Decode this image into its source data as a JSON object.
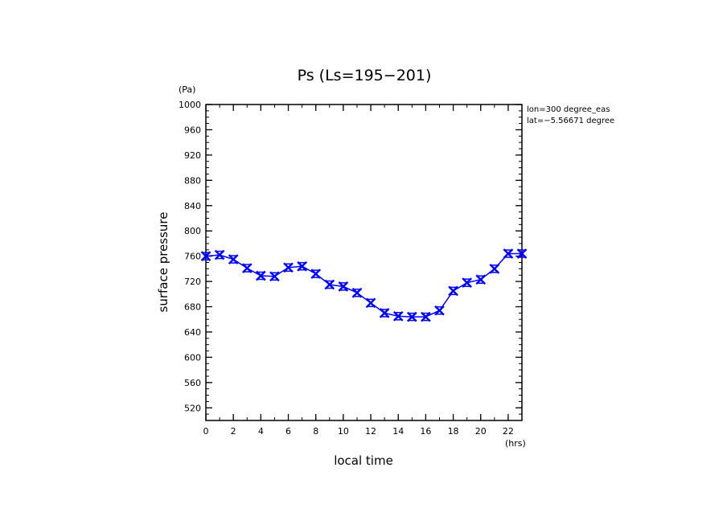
{
  "chart_data": {
    "type": "line",
    "title": "Ps (Ls=195−201)",
    "xlabel": "local time",
    "ylabel": "surface pressure",
    "x_unit": "(hrs)",
    "y_unit": "(Pa)",
    "xlim": [
      0,
      23
    ],
    "ylim": [
      500,
      1000
    ],
    "x_ticks": [
      0,
      2,
      4,
      6,
      8,
      10,
      12,
      14,
      16,
      18,
      20,
      22
    ],
    "x_tick_labels": [
      "0",
      "2",
      "4",
      "6",
      "8",
      "10",
      "12",
      "14",
      "16",
      "18",
      "20",
      "22"
    ],
    "y_ticks": [
      520,
      560,
      600,
      640,
      680,
      720,
      760,
      800,
      840,
      880,
      920,
      960,
      1000
    ],
    "y_tick_labels": [
      "520",
      "560",
      "600",
      "640",
      "680",
      "720",
      "760",
      "800",
      "840",
      "880",
      "920",
      "960",
      "1000"
    ],
    "annotations": [
      "lon=300 degree_eas",
      "lat=−5.56671 degree"
    ],
    "grid": false,
    "series": [
      {
        "color": "#0000ff",
        "marker": "x",
        "x": [
          0,
          1,
          2,
          3,
          4,
          5,
          6,
          7,
          8,
          9,
          10,
          11,
          12,
          13,
          14,
          15,
          16,
          17,
          18,
          19,
          20,
          21,
          22,
          23
        ],
        "values": [
          760,
          762,
          755,
          741,
          729,
          728,
          742,
          744,
          732,
          715,
          712,
          702,
          686,
          670,
          665,
          664,
          664,
          674,
          705,
          718,
          723,
          740,
          764,
          764
        ]
      }
    ]
  }
}
